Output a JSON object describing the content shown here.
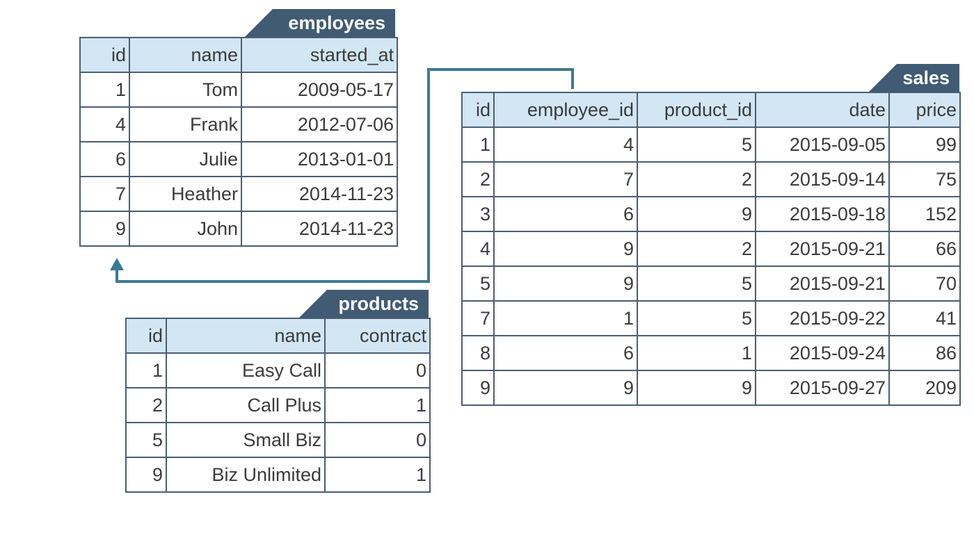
{
  "tables": {
    "employees": {
      "name": "employees",
      "columns": [
        "id",
        "name",
        "started_at"
      ],
      "rows": [
        [
          "1",
          "Tom",
          "2009-05-17"
        ],
        [
          "4",
          "Frank",
          "2012-07-06"
        ],
        [
          "6",
          "Julie",
          "2013-01-01"
        ],
        [
          "7",
          "Heather",
          "2014-11-23"
        ],
        [
          "9",
          "John",
          "2014-11-23"
        ]
      ]
    },
    "sales": {
      "name": "sales",
      "columns": [
        "id",
        "employee_id",
        "product_id",
        "date",
        "price"
      ],
      "rows": [
        [
          "1",
          "4",
          "5",
          "2015-09-05",
          "99"
        ],
        [
          "2",
          "7",
          "2",
          "2015-09-14",
          "75"
        ],
        [
          "3",
          "6",
          "9",
          "2015-09-18",
          "152"
        ],
        [
          "4",
          "9",
          "2",
          "2015-09-21",
          "66"
        ],
        [
          "5",
          "9",
          "5",
          "2015-09-21",
          "70"
        ],
        [
          "7",
          "1",
          "5",
          "2015-09-22",
          "41"
        ],
        [
          "8",
          "6",
          "1",
          "2015-09-24",
          "86"
        ],
        [
          "9",
          "9",
          "9",
          "2015-09-27",
          "209"
        ]
      ]
    },
    "products": {
      "name": "products",
      "columns": [
        "id",
        "name",
        "contract"
      ],
      "rows": [
        [
          "1",
          "Easy Call",
          "0"
        ],
        [
          "2",
          "Call Plus",
          "1"
        ],
        [
          "5",
          "Small Biz",
          "0"
        ],
        [
          "9",
          "Biz Unlimited",
          "1"
        ]
      ]
    }
  },
  "colors": {
    "header_tab": "#415b74",
    "header_row": "#d2e6f4",
    "border": "#4b5e70",
    "connector": "#3b7a94"
  }
}
